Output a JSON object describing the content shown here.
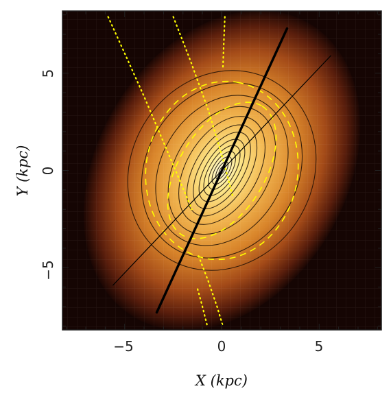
{
  "chart_data": {
    "type": "heatmap",
    "title": "",
    "xlabel": "X (kpc)",
    "ylabel": "Y (kpc)",
    "xlim": [
      -8.2,
      8.2
    ],
    "ylim": [
      -8.2,
      8.2
    ],
    "x_ticks": [
      -5,
      0,
      5
    ],
    "y_ticks": [
      -5,
      0,
      5
    ],
    "x_tick_labels": [
      "−5",
      "0",
      "5"
    ],
    "y_tick_labels": [
      "−5",
      "0",
      "5"
    ],
    "colormap": [
      "#1a0603",
      "#5a1e0c",
      "#a34a18",
      "#d8842a",
      "#f2b650",
      "#fde88a",
      "#fffde0"
    ],
    "contour_color": "#1a0d05",
    "contours": {
      "center": [
        0,
        0
      ],
      "position_angle_deg": 59,
      "semi_major": [
        0.25,
        0.5,
        0.8,
        1.1,
        1.45,
        1.8,
        2.2,
        2.6,
        3.05,
        3.55,
        4.1,
        4.7,
        5.3
      ],
      "axis_ratio": [
        0.42,
        0.42,
        0.43,
        0.44,
        0.45,
        0.47,
        0.5,
        0.54,
        0.6,
        0.68,
        0.76,
        0.83,
        0.88
      ]
    },
    "lines": [
      {
        "style": "thick",
        "color": "#000000",
        "x": [
          -3.35,
          3.35
        ],
        "y": [
          -7.3,
          7.3
        ]
      },
      {
        "style": "thin",
        "color": "#000000",
        "x": [
          -5.6,
          5.6
        ],
        "y": [
          -5.9,
          5.9
        ]
      }
    ],
    "yellow_ellipses": [
      {
        "style": "dashed",
        "color": "#ffff00",
        "semi_major": 4.6,
        "semi_minor": 3.9,
        "position_angle_deg": 80
      },
      {
        "style": "dashed",
        "color": "#ffff00",
        "semi_major": 3.9,
        "semi_minor": 2.2,
        "position_angle_deg": 58
      }
    ],
    "yellow_dotted_curves": [
      {
        "color": "#ffff00",
        "x": [
          -5.85,
          -4.9,
          -4.0,
          -3.15,
          -2.3,
          -1.55
        ],
        "y": [
          7.9,
          5.8,
          3.8,
          1.8,
          -0.2,
          -2.0
        ]
      },
      {
        "color": "#ffff00",
        "x": [
          -2.5,
          -1.6,
          -0.7,
          0.05,
          0.55
        ],
        "y": [
          7.9,
          5.6,
          3.1,
          0.6,
          -1.3
        ]
      },
      {
        "color": "#ffff00",
        "x": [
          0.15,
          0.1,
          0.05
        ],
        "y": [
          7.9,
          6.6,
          5.2
        ]
      },
      {
        "color": "#ffff00",
        "x": [
          -1.2,
          -0.7,
          -0.25,
          0.05
        ],
        "y": [
          -4.4,
          -5.7,
          -7.0,
          -8.0
        ]
      },
      {
        "color": "#ffff00",
        "x": [
          -1.25,
          -1.0,
          -0.75
        ],
        "y": [
          -6.1,
          -7.0,
          -8.0
        ]
      }
    ]
  }
}
